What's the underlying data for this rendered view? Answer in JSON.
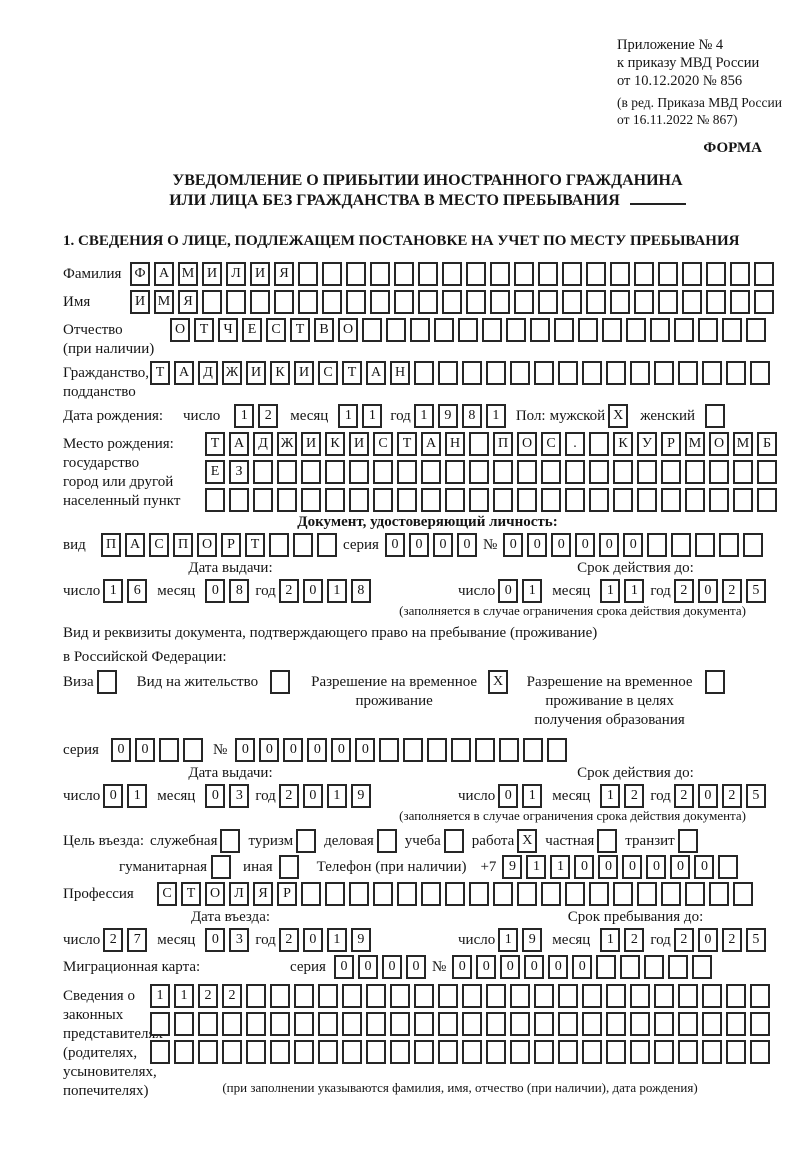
{
  "header": {
    "appendix_lines": [
      "Приложение № 4",
      "к приказу МВД России",
      "от 10.12.2020 № 856"
    ],
    "amendment_lines": [
      "(в ред. Приказа МВД России",
      "от 16.11.2022 № 867)"
    ],
    "form_label": "ФОРМА",
    "title_line1": "УВЕДОМЛЕНИЕ О ПРИБЫТИИ ИНОСТРАННОГО ГРАЖДАНИНА",
    "title_line2": "ИЛИ ЛИЦА БЕЗ ГРАЖДАНСТВА В МЕСТО ПРЕБЫВАНИЯ",
    "section1_title": "1. СВЕДЕНИЯ О ЛИЦЕ, ПОДЛЕЖАЩЕМ ПОСТАНОВКЕ НА УЧЕТ ПО МЕСТУ ПРЕБЫВАНИЯ"
  },
  "common": {
    "day_label": "число",
    "month_label": "месяц",
    "year_label": "год"
  },
  "person": {
    "surname": {
      "label": "Фамилия",
      "value": "ФАМИЛИЯ",
      "total": 27
    },
    "given_name": {
      "label": "Имя",
      "value": "ИМЯ",
      "total": 27
    },
    "patronymic": {
      "label_lines": [
        "Отчество",
        "(при наличии)"
      ],
      "value": "ОТЧЕСТВО",
      "total": 25
    },
    "citizenship": {
      "label_lines": [
        "Гражданство,",
        "подданство"
      ],
      "value": "ТАДЖИКИСТАН",
      "total": 26
    },
    "birth_date": {
      "label": "Дата рождения:",
      "day": "12",
      "month": "11",
      "year": "1981"
    },
    "sex": {
      "label": "Пол:",
      "male_label": "мужской",
      "male_mark": "X",
      "female_label": "женский",
      "female_mark": ""
    },
    "birth_place": {
      "label_lines": [
        "Место рождения:",
        "государство",
        "город или другой",
        "населенный пункт"
      ],
      "rows": [
        {
          "value": "ТАДЖИКИСТАН ПОС. КУРМОМБ",
          "total": 24
        },
        {
          "value": "ЕЗ",
          "total": 24
        },
        {
          "value": "",
          "total": 24
        }
      ]
    }
  },
  "identity_doc": {
    "section_title": "Документ, удостоверяющий личность:",
    "kind_label": "вид",
    "kind": {
      "value": "ПАСПОРТ",
      "total": 10
    },
    "series_label": "серия",
    "series": {
      "value": "0000",
      "total": 4
    },
    "number_label": "№",
    "number": {
      "value": "000000",
      "total": 11
    },
    "issue_header": "Дата выдачи:",
    "validity_header": "Срок действия до:",
    "issue": {
      "day": "16",
      "month": "08",
      "year": "2018"
    },
    "validity": {
      "day": "01",
      "month": "11",
      "year": "2025"
    },
    "note": "(заполняется в случае ограничения срока действия документа)"
  },
  "residence_doc": {
    "intro_line1": "Вид и реквизиты документа, подтверждающего право на пребывание (проживание)",
    "intro_line2": "в Российской Федерации:",
    "options": [
      {
        "label": "Виза",
        "mark": ""
      },
      {
        "label": "Вид на жительство",
        "mark": ""
      },
      {
        "label": "Разрешение на временное проживание",
        "mark": "X"
      },
      {
        "label": "Разрешение на временное проживание в целях получения образования",
        "mark": ""
      }
    ],
    "series_label": "серия",
    "series": {
      "value": "00",
      "total": 4
    },
    "number_label": "№",
    "number": {
      "value": "000000",
      "total": 14
    },
    "issue_header": "Дата выдачи:",
    "validity_header": "Срок действия до:",
    "issue": {
      "day": "01",
      "month": "03",
      "year": "2019"
    },
    "validity": {
      "day": "01",
      "month": "12",
      "year": "2025"
    },
    "note": "(заполняется в случае ограничения срока действия документа)"
  },
  "visit": {
    "purpose_label": "Цель въезда:",
    "options_line1": [
      {
        "label": "служебная",
        "mark": ""
      },
      {
        "label": "туризм",
        "mark": ""
      },
      {
        "label": "деловая",
        "mark": ""
      },
      {
        "label": "учеба",
        "mark": ""
      },
      {
        "label": "работа",
        "mark": "X"
      },
      {
        "label": "частная",
        "mark": ""
      },
      {
        "label": "транзит",
        "mark": ""
      }
    ],
    "options_line2": [
      {
        "label": "гуманитарная",
        "mark": ""
      },
      {
        "label": "иная",
        "mark": ""
      }
    ],
    "phone_label": "Телефон (при наличии)",
    "phone_prefix": "+7",
    "phone": {
      "value": "911000000",
      "total": 10
    },
    "profession_label": "Профессия",
    "profession": {
      "value": "СТОЛЯР",
      "total": 25
    }
  },
  "stay": {
    "entry_header": "Дата въезда:",
    "until_header": "Срок пребывания до:",
    "entry": {
      "day": "27",
      "month": "03",
      "year": "2019"
    },
    "until": {
      "day": "19",
      "month": "12",
      "year": "2025"
    },
    "migration_card_label": "Миграционная карта:",
    "series_label": "серия",
    "series": {
      "value": "0000",
      "total": 4
    },
    "number_label": "№",
    "number": {
      "value": "000000",
      "total": 11
    }
  },
  "representatives": {
    "label_lines": [
      "Сведения о",
      "законных",
      "представителях",
      "(родителях,",
      "усыновителях,",
      "попечителях)"
    ],
    "rows": [
      {
        "value": "1122",
        "total": 26
      },
      {
        "value": "",
        "total": 26
      },
      {
        "value": "",
        "total": 26
      }
    ],
    "note": "(при заполнении указываются фамилия, имя, отчество (при наличии), дата рождения)"
  }
}
